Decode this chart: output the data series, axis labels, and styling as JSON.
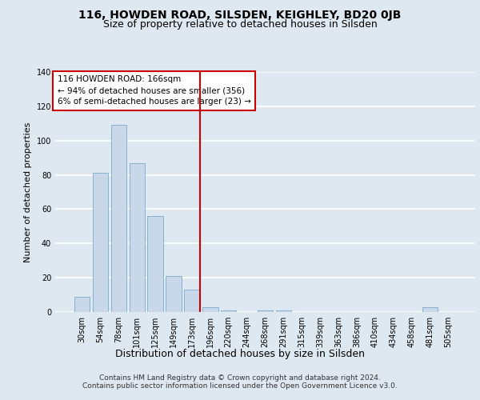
{
  "title1": "116, HOWDEN ROAD, SILSDEN, KEIGHLEY, BD20 0JB",
  "title2": "Size of property relative to detached houses in Silsden",
  "xlabel": "Distribution of detached houses by size in Silsden",
  "ylabel": "Number of detached properties",
  "bar_labels": [
    "30sqm",
    "54sqm",
    "78sqm",
    "101sqm",
    "125sqm",
    "149sqm",
    "173sqm",
    "196sqm",
    "220sqm",
    "244sqm",
    "268sqm",
    "291sqm",
    "315sqm",
    "339sqm",
    "363sqm",
    "386sqm",
    "410sqm",
    "434sqm",
    "458sqm",
    "481sqm",
    "505sqm"
  ],
  "bar_values": [
    9,
    81,
    109,
    87,
    56,
    21,
    13,
    3,
    1,
    0,
    1,
    1,
    0,
    0,
    0,
    0,
    0,
    0,
    0,
    3,
    0
  ],
  "bar_color": "#c8d8e8",
  "bar_edge_color": "#7aaac8",
  "vline_color": "#cc0000",
  "annotation_title": "116 HOWDEN ROAD: 166sqm",
  "annotation_line1": "← 94% of detached houses are smaller (356)",
  "annotation_line2": "6% of semi-detached houses are larger (23) →",
  "annotation_box_color": "#cc0000",
  "ylim": [
    0,
    140
  ],
  "yticks": [
    0,
    20,
    40,
    60,
    80,
    100,
    120,
    140
  ],
  "footer": "Contains HM Land Registry data © Crown copyright and database right 2024.\nContains public sector information licensed under the Open Government Licence v3.0.",
  "bg_color": "#dde8f0",
  "plot_bg_color": "#dde8f0",
  "grid_color": "#ffffff",
  "title1_fontsize": 10,
  "title2_fontsize": 9,
  "xlabel_fontsize": 9,
  "ylabel_fontsize": 8,
  "tick_fontsize": 7,
  "footer_fontsize": 6.5,
  "ann_fontsize": 7.5
}
